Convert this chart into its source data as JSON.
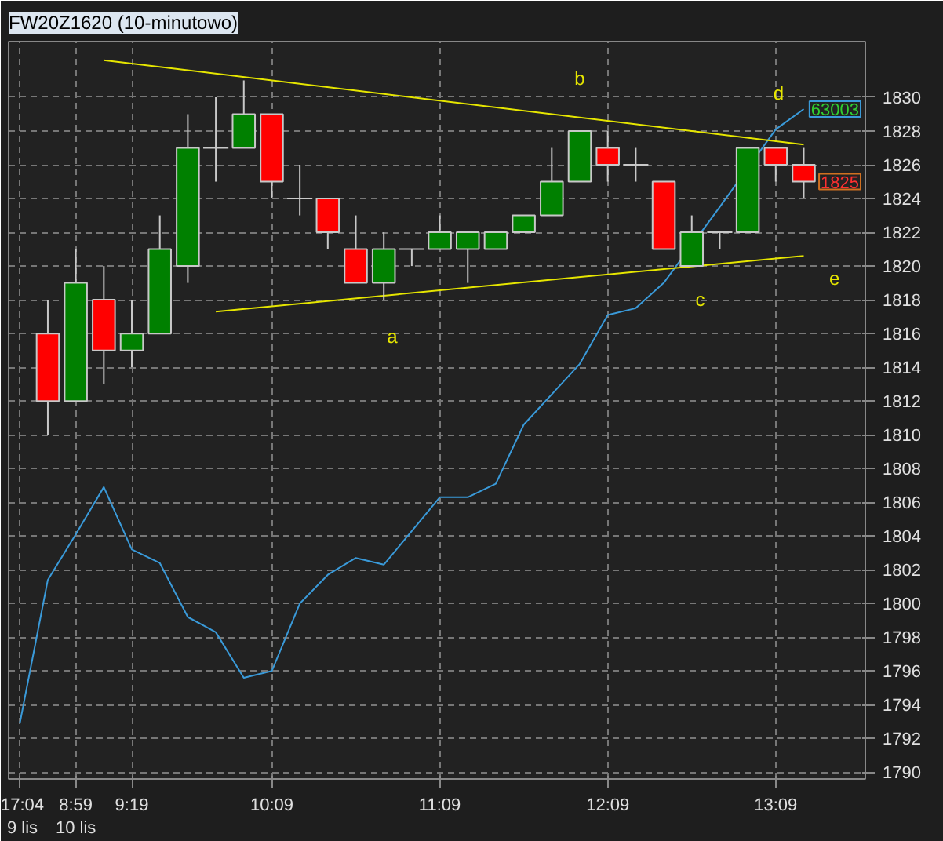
{
  "chart_data": {
    "type": "candlestick",
    "title": "FW20Z1620 (10-minutowo)",
    "categories": [
      "17:04\n9 lis",
      null,
      "8:59\n10 lis",
      null,
      "9:19",
      null,
      null,
      null,
      null,
      "10:09",
      null,
      null,
      null,
      null,
      null,
      "11:09",
      null,
      null,
      null,
      null,
      null,
      "12:09",
      null,
      null,
      null,
      null,
      null,
      "13:09",
      null
    ],
    "ohlc": [
      null,
      [
        1816,
        1818,
        1810,
        1812
      ],
      [
        1812,
        1821,
        1812,
        1819
      ],
      [
        1818,
        1820,
        1813,
        1815
      ],
      [
        1815,
        1818,
        1814,
        1816
      ],
      [
        1816,
        1823,
        1816,
        1821
      ],
      [
        1820,
        1829,
        1819,
        1827
      ],
      [
        1827,
        1830,
        1825,
        1827
      ],
      [
        1827,
        1831,
        1827,
        1829
      ],
      [
        1829,
        1829,
        1824,
        1825
      ],
      [
        1824,
        1826,
        1823,
        1824
      ],
      [
        1824,
        1824,
        1821,
        1822
      ],
      [
        1821,
        1823,
        1819,
        1819
      ],
      [
        1819,
        1822,
        1818,
        1821
      ],
      [
        1821,
        1821,
        1820,
        1821
      ],
      [
        1821,
        1823,
        1821,
        1822
      ],
      [
        1821,
        1822,
        1819,
        1822
      ],
      [
        1821,
        1822,
        1821,
        1822
      ],
      [
        1822,
        1823,
        1822,
        1823
      ],
      [
        1823,
        1827,
        1823,
        1825
      ],
      [
        1825,
        1828,
        1825,
        1828
      ],
      [
        1827,
        1828,
        1825,
        1826
      ],
      [
        1826,
        1827,
        1825,
        1826
      ],
      [
        1825,
        1825,
        1821,
        1821
      ],
      [
        1820,
        1823,
        1820,
        1822
      ],
      [
        1822,
        1822,
        1821,
        1822
      ],
      [
        1822,
        1827,
        1822,
        1827
      ],
      [
        1827,
        1827,
        1825,
        1826
      ],
      [
        1826,
        1827,
        1824,
        1825
      ]
    ],
    "colors": [
      null,
      "#ff0000",
      "#008000",
      "#ff0000",
      "#008000",
      "#008000",
      "#008000",
      "#c8c8c8",
      "#008000",
      "#ff0000",
      "#c8c8c8",
      "#ff0000",
      "#ff0000",
      "#008000",
      "#c8c8c8",
      "#008000",
      "#008000",
      "#008000",
      "#008000",
      "#008000",
      "#008000",
      "#ff0000",
      "#c8c8c8",
      "#ff0000",
      "#008000",
      "#c8c8c8",
      "#008000",
      "#ff0000",
      "#ff0000"
    ],
    "series": [
      {
        "type": "line",
        "color": "#3a9ad9",
        "values": [
          1792.9,
          1801.4,
          1804.1,
          1806.9,
          1803.2,
          1802.4,
          1799.2,
          1798.3,
          1795.6,
          1796.0,
          1800.0,
          1801.7,
          1802.7,
          1802.3,
          1804.3,
          1806.3,
          1806.3,
          1807.1,
          1810.6,
          1812.4,
          1814.2,
          1817.1,
          1817.5,
          1819.0,
          null,
          1823.5,
          null,
          1828.1,
          1829.3
        ]
      },
      {
        "type": "line",
        "color": "#e6e600",
        "values": [
          null,
          null,
          null,
          1832.2,
          null,
          null,
          null,
          null,
          null,
          null,
          null,
          null,
          null,
          null,
          null,
          null,
          null,
          null,
          null,
          null,
          null,
          null,
          null,
          null,
          null,
          null,
          null,
          null,
          1827.2
        ]
      },
      {
        "type": "line",
        "color": "#e6e600",
        "values": [
          null,
          null,
          null,
          null,
          null,
          null,
          null,
          1817.3,
          null,
          null,
          null,
          null,
          null,
          null,
          null,
          null,
          null,
          null,
          null,
          null,
          null,
          null,
          null,
          null,
          null,
          null,
          null,
          null,
          1820.6
        ]
      }
    ],
    "ylim": [
      1789.6,
      1833.3
    ],
    "yticks": [
      1790,
      1792,
      1794,
      1796,
      1798,
      1800,
      1802,
      1804,
      1806,
      1808,
      1810,
      1812,
      1814,
      1816,
      1818,
      1820,
      1822,
      1824,
      1826,
      1828,
      1830
    ],
    "grid": true,
    "annotations": [
      "a",
      "b",
      "c",
      "d",
      "e",
      "63003",
      "1825"
    ]
  }
}
